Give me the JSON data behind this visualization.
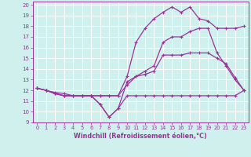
{
  "xlabel": "Windchill (Refroidissement éolien,°C)",
  "xlim": [
    -0.5,
    23.5
  ],
  "ylim": [
    9,
    20.3
  ],
  "yticks": [
    9,
    10,
    11,
    12,
    13,
    14,
    15,
    16,
    17,
    18,
    19,
    20
  ],
  "xticks": [
    0,
    1,
    2,
    3,
    4,
    5,
    6,
    7,
    8,
    9,
    10,
    11,
    12,
    13,
    14,
    15,
    16,
    17,
    18,
    19,
    20,
    21,
    22,
    23
  ],
  "bg_color": "#cff0ec",
  "grid_color": "#ffffff",
  "line_color": "#993399",
  "line_width": 0.9,
  "markersize": 3.5,
  "lines": [
    [
      12.2,
      12.0,
      11.7,
      11.5,
      11.5,
      11.5,
      11.5,
      10.7,
      9.5,
      10.3,
      11.5,
      11.5,
      11.5,
      11.5,
      11.5,
      11.5,
      11.5,
      11.5,
      11.5,
      11.5,
      11.5,
      11.5,
      11.5,
      12.0
    ],
    [
      12.2,
      12.0,
      11.7,
      11.5,
      11.5,
      11.5,
      11.5,
      10.7,
      9.5,
      10.3,
      12.8,
      13.3,
      13.5,
      13.8,
      15.3,
      15.3,
      15.3,
      15.5,
      15.5,
      15.5,
      15.0,
      14.5,
      13.2,
      12.0
    ],
    [
      12.2,
      12.0,
      11.7,
      11.5,
      11.5,
      11.5,
      11.5,
      11.5,
      11.5,
      11.5,
      12.5,
      13.3,
      13.8,
      14.3,
      16.5,
      17.0,
      17.0,
      17.5,
      17.8,
      17.8,
      15.5,
      14.3,
      13.0,
      12.0
    ],
    [
      12.2,
      12.0,
      11.8,
      11.7,
      11.5,
      11.5,
      11.5,
      11.5,
      11.5,
      11.5,
      13.3,
      16.5,
      17.8,
      18.7,
      19.3,
      19.8,
      19.3,
      19.8,
      18.7,
      18.5,
      17.8,
      17.8,
      17.8,
      18.0
    ]
  ]
}
